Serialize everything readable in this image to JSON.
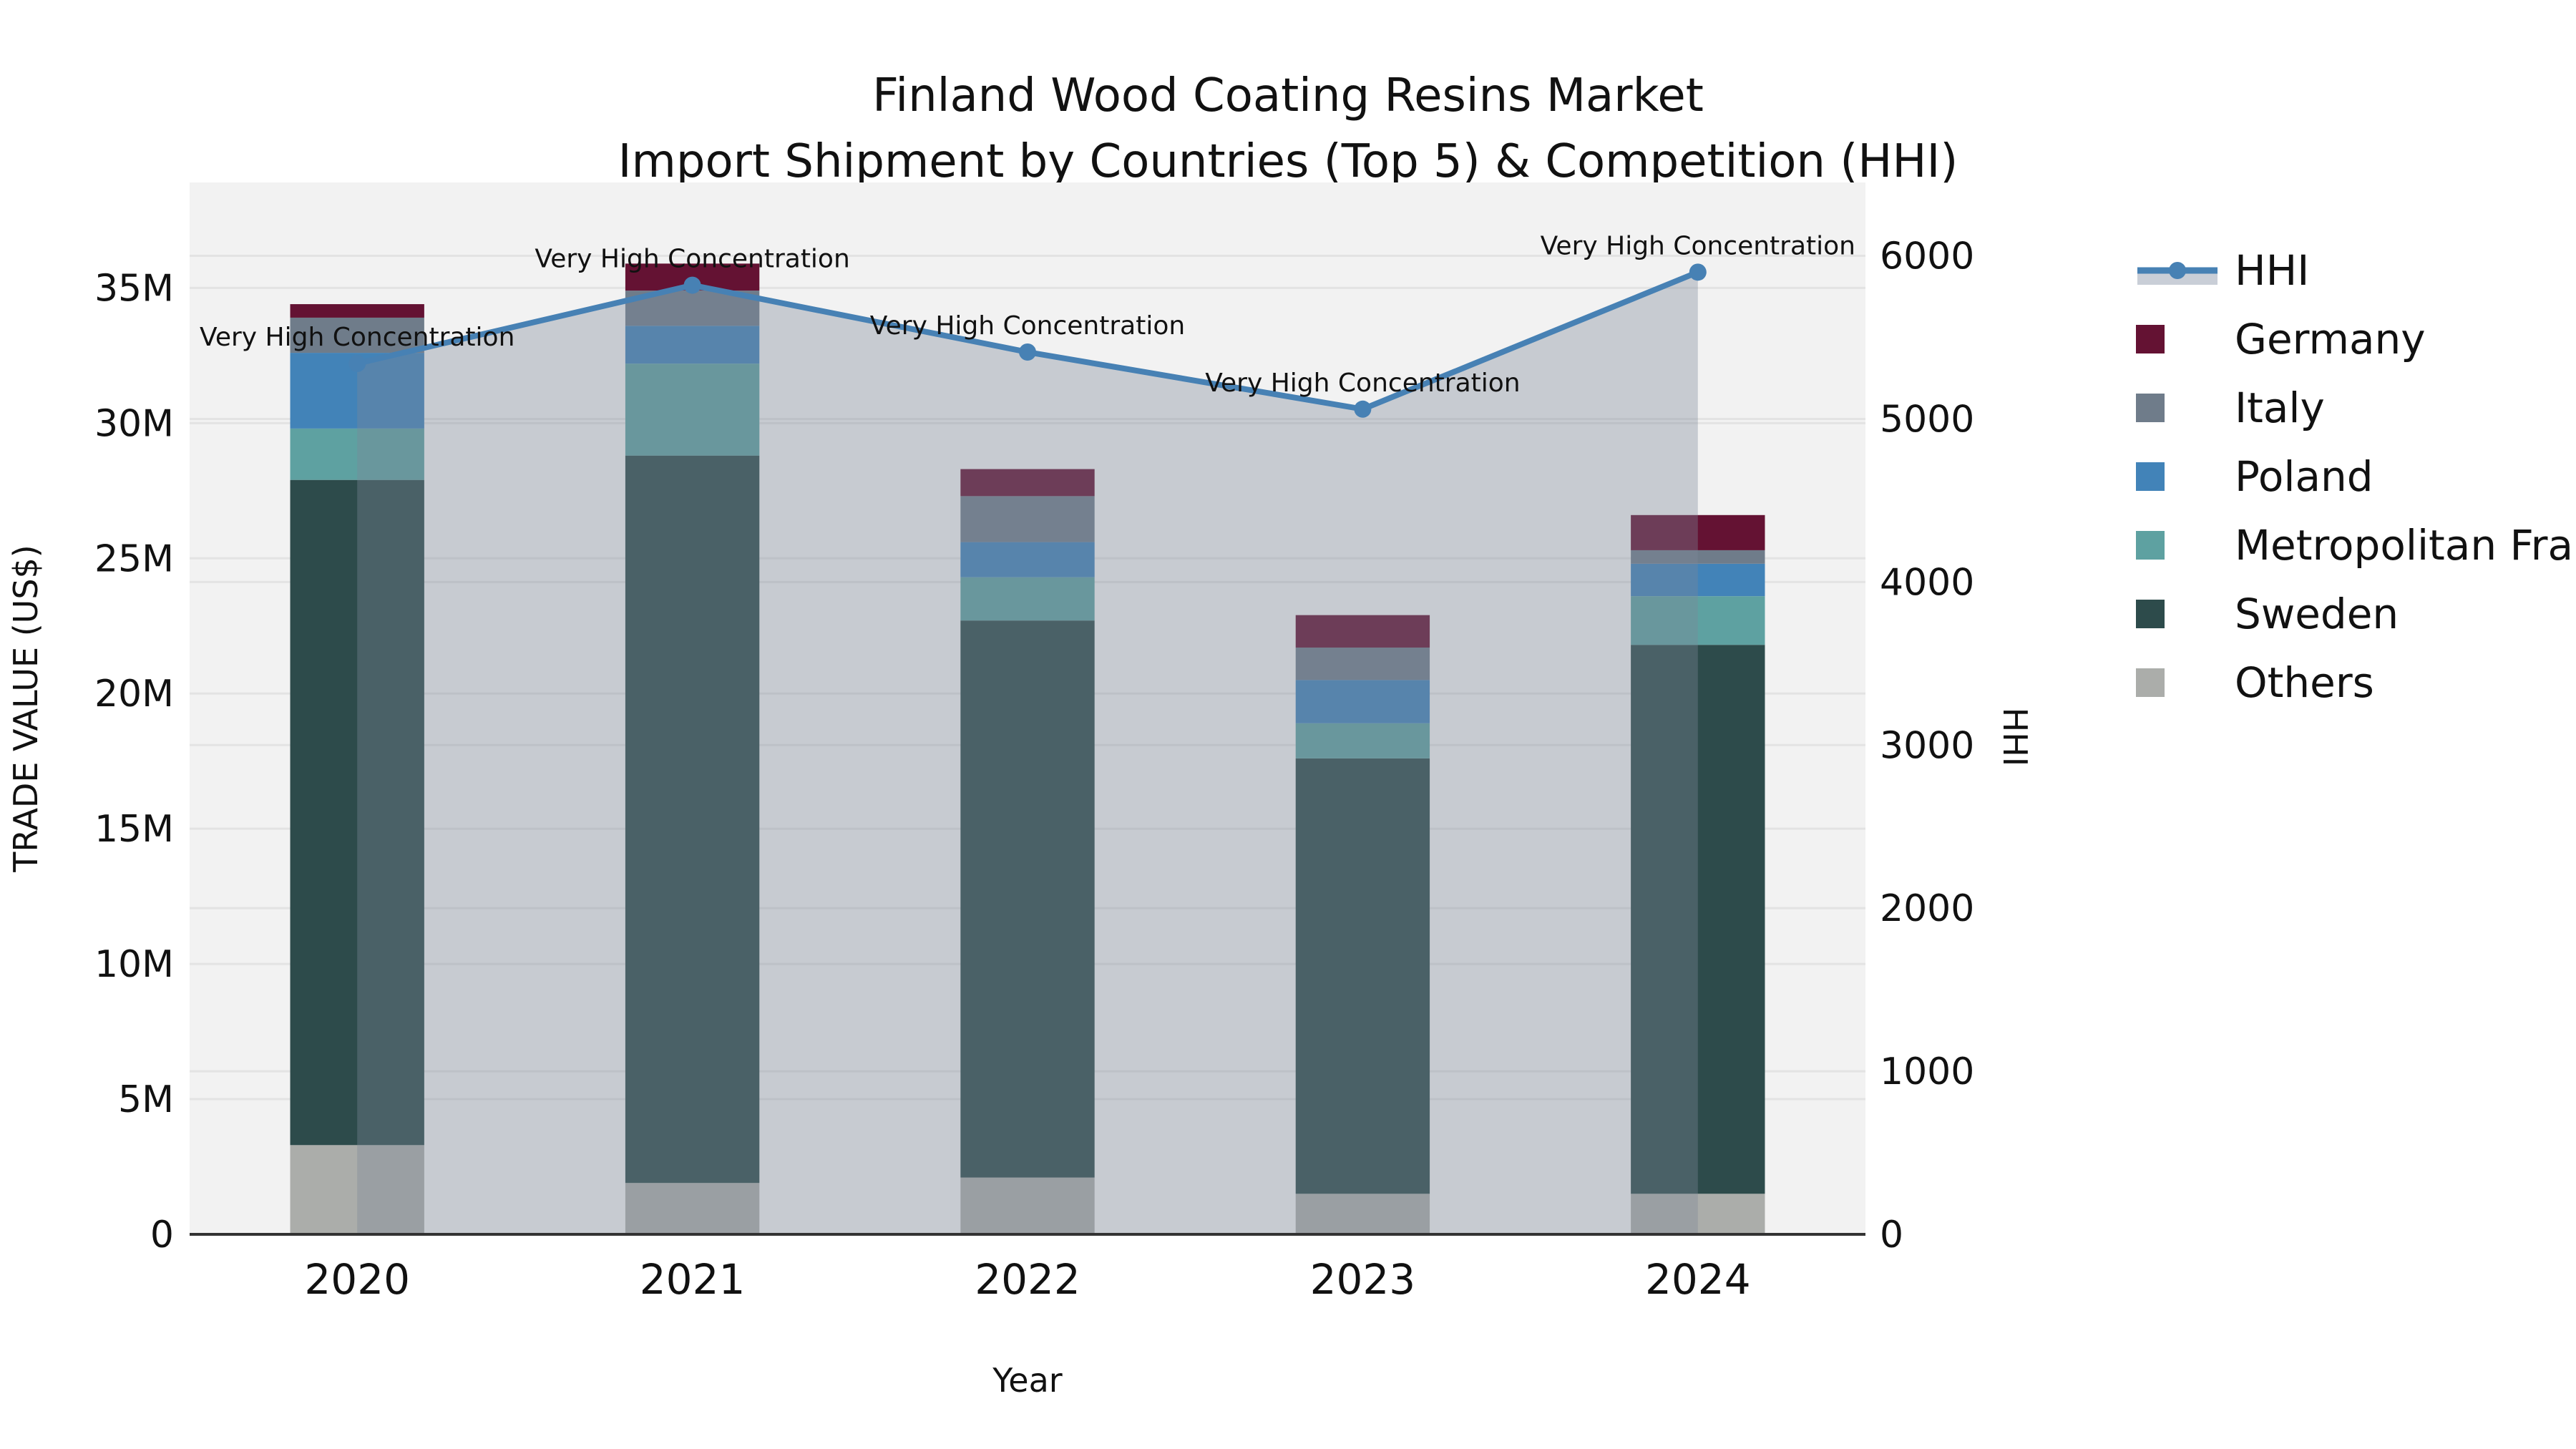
{
  "title": {
    "line1": "Finland Wood Coating Resins Market",
    "line2": "Import Shipment by Countries (Top 5) & Competition (HHI)"
  },
  "axes": {
    "x": {
      "title": "Year",
      "tick_labels": [
        "2020",
        "2021",
        "2022",
        "2023",
        "2024"
      ]
    },
    "y_left": {
      "title": "TRADE VALUE (US$)",
      "tick_labels": [
        "0",
        "5M",
        "10M",
        "15M",
        "20M",
        "25M",
        "30M",
        "35M"
      ]
    },
    "y_right": {
      "title": "HHI",
      "tick_labels": [
        "0",
        "1000",
        "2000",
        "3000",
        "4000",
        "5000",
        "6000"
      ]
    }
  },
  "legend": {
    "items": [
      {
        "label": "HHI",
        "type": "line",
        "color": "#4781b4"
      },
      {
        "label": "Germany",
        "type": "square",
        "color": "#641233"
      },
      {
        "label": "Italy",
        "type": "square",
        "color": "#6f7c8a"
      },
      {
        "label": "Poland",
        "type": "square",
        "color": "#4283b8"
      },
      {
        "label": "Metropolitan France",
        "type": "square",
        "color": "#5ea1a1"
      },
      {
        "label": "Sweden",
        "type": "square",
        "color": "#2d4b4b"
      },
      {
        "label": "Others",
        "type": "square",
        "color": "#abadaa"
      }
    ]
  },
  "chart_data": {
    "type": "bar",
    "subtype": "stacked-bars-with-line-overlay",
    "categories": [
      "2020",
      "2021",
      "2022",
      "2023",
      "2024"
    ],
    "bar_unit": "million US$",
    "bar_series": [
      {
        "name": "Others",
        "color": "#abadaa",
        "values_musd": [
          3.3,
          1.9,
          2.1,
          1.5,
          1.5
        ]
      },
      {
        "name": "Sweden",
        "color": "#2d4b4b",
        "values_musd": [
          24.6,
          26.9,
          20.6,
          16.1,
          20.3
        ]
      },
      {
        "name": "Metropolitan France",
        "color": "#5ea1a1",
        "values_musd": [
          1.9,
          3.4,
          1.6,
          1.3,
          1.8
        ]
      },
      {
        "name": "Poland",
        "color": "#4283b8",
        "values_musd": [
          2.8,
          1.4,
          1.3,
          1.6,
          1.2
        ]
      },
      {
        "name": "Italy",
        "color": "#6f7c8a",
        "values_musd": [
          1.3,
          1.3,
          1.7,
          1.2,
          0.5
        ]
      },
      {
        "name": "Germany",
        "color": "#641233",
        "values_musd": [
          0.5,
          1.0,
          1.0,
          1.2,
          1.3
        ]
      }
    ],
    "bar_totals_musd": [
      34.4,
      35.9,
      28.3,
      22.9,
      26.6
    ],
    "hhi_series": {
      "name": "HHI",
      "color": "#4781b4",
      "area_fill": "rgba(125,136,153,0.37)",
      "values": [
        5340,
        5820,
        5410,
        5060,
        5900
      ]
    },
    "annotations": [
      {
        "x": "2020",
        "text": "Very High Concentration"
      },
      {
        "x": "2021",
        "text": "Very High Concentration"
      },
      {
        "x": "2022",
        "text": "Very High Concentration"
      },
      {
        "x": "2023",
        "text": "Very High Concentration"
      },
      {
        "x": "2024",
        "text": "Very High Concentration"
      }
    ],
    "layout": {
      "y_left_max_musd": 38.9,
      "y_right_max": 6450,
      "y_left_tick_step_musd": 5,
      "y_right_tick_step": 1000,
      "grid": true,
      "plot_bg": "#f2f2f2",
      "grid_color": "#e3e3e3",
      "axis_line_color": "#333333",
      "legend_position": "right"
    }
  }
}
